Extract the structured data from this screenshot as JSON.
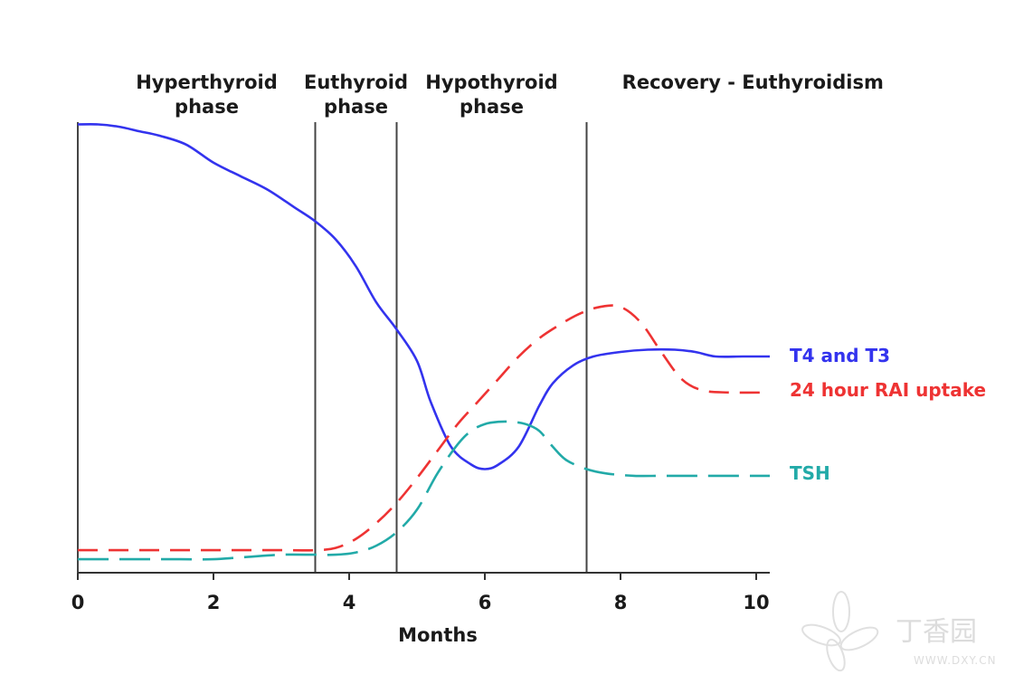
{
  "chart_data": {
    "type": "line",
    "title": "",
    "xlabel": "Months",
    "ylabel": "",
    "xlim": [
      0,
      10.2
    ],
    "ylim": [
      0,
      100
    ],
    "x_ticks": [
      0,
      2,
      4,
      6,
      8,
      10
    ],
    "x_tick_labels": [
      "0",
      "2",
      "4",
      "6",
      "8",
      "10"
    ],
    "grid": false,
    "phase_boundaries": [
      0,
      3.5,
      4.7,
      7.5
    ],
    "phases": [
      {
        "line1": "Hyperthyroid",
        "line2": "phase",
        "center": 1.9
      },
      {
        "line1": "Euthyroid",
        "line2": "phase",
        "center": 4.1
      },
      {
        "line1": "Hypothyroid",
        "line2": "phase",
        "center": 6.1
      },
      {
        "line1": "Recovery - Euthyroidism",
        "line2": "",
        "center": 9.95
      }
    ],
    "series": [
      {
        "name": "T4 and T3",
        "color": "#3333ee",
        "dash": "solid",
        "x": [
          0,
          0.3,
          0.6,
          0.9,
          1.2,
          1.6,
          2.0,
          2.4,
          2.8,
          3.2,
          3.5,
          3.8,
          4.1,
          4.4,
          4.7,
          5.0,
          5.2,
          5.5,
          5.8,
          6.0,
          6.2,
          6.5,
          6.8,
          7.0,
          7.3,
          7.6,
          8.0,
          8.4,
          8.8,
          9.1,
          9.4,
          9.8,
          10.2
        ],
        "values": [
          99.5,
          99.5,
          99,
          98,
          97,
          95,
          91,
          88,
          85,
          81,
          78,
          74,
          68,
          60,
          54,
          47,
          38,
          28,
          24,
          23,
          24,
          28,
          37,
          42,
          46,
          48,
          49,
          49.5,
          49.5,
          49,
          48,
          48,
          48
        ]
      },
      {
        "name": "24 hour RAI uptake",
        "color": "#ee3333",
        "dash": "dashed",
        "x": [
          0,
          0.5,
          1.0,
          1.5,
          2.0,
          2.5,
          3.0,
          3.5,
          3.8,
          4.1,
          4.4,
          4.7,
          5.0,
          5.3,
          5.6,
          5.9,
          6.2,
          6.5,
          6.8,
          7.1,
          7.4,
          7.7,
          8.0,
          8.3,
          8.6,
          8.9,
          9.2,
          9.6,
          10.2
        ],
        "values": [
          5,
          5,
          5,
          5,
          5,
          5,
          5,
          5,
          5.5,
          7.5,
          11,
          15.5,
          21,
          27,
          33,
          38,
          43,
          48,
          52,
          55,
          57.5,
          59,
          59,
          55.5,
          49,
          43,
          40.5,
          40,
          40
        ]
      },
      {
        "name": "TSH",
        "color": "#22aaa8",
        "dash": "long-dash",
        "x": [
          0,
          0.5,
          1.0,
          1.5,
          2.0,
          2.5,
          3.0,
          3.5,
          3.8,
          4.1,
          4.4,
          4.7,
          5.0,
          5.3,
          5.6,
          5.8,
          6.0,
          6.2,
          6.4,
          6.6,
          6.8,
          7.0,
          7.2,
          7.5,
          7.8,
          8.2,
          8.6,
          9.0,
          9.5,
          10.2
        ],
        "values": [
          3,
          3,
          3,
          3,
          3,
          3.5,
          4,
          4,
          4,
          4.5,
          6,
          9,
          14,
          22,
          28.5,
          31.5,
          33,
          33.5,
          33.5,
          33,
          31.5,
          28,
          25,
          23,
          22,
          21.5,
          21.5,
          21.5,
          21.5,
          21.5
        ]
      }
    ]
  },
  "watermark": {
    "text": "丁香园",
    "url": "WWW.DXY.CN"
  }
}
